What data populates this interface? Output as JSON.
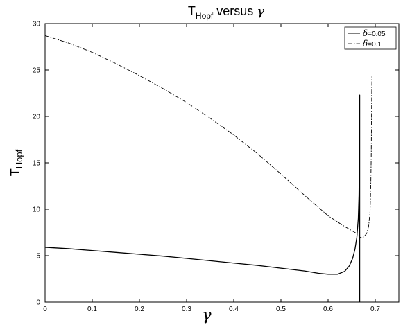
{
  "chart_data": {
    "type": "line",
    "title": {
      "main": "T",
      "subscript": "Hopf",
      "middle": " versus ",
      "symbol": "γ"
    },
    "xlabel": "γ",
    "ylabel": {
      "main": "T",
      "subscript": "Hopf"
    },
    "xlim": [
      0,
      0.75
    ],
    "ylim": [
      0,
      30
    ],
    "xticks": [
      "0",
      "0.1",
      "0.2",
      "0.3",
      "0.4",
      "0.5",
      "0.6",
      "0.7"
    ],
    "yticks": [
      "0",
      "5",
      "10",
      "15",
      "20",
      "25",
      "30"
    ],
    "grid": false,
    "legend_position": "top-right",
    "series": [
      {
        "name": "δ=0.05",
        "name_symbol": "δ",
        "name_rest": "=0.05",
        "style": "solid",
        "color": "#000000",
        "x": [
          0,
          0.05,
          0.1,
          0.15,
          0.2,
          0.25,
          0.3,
          0.35,
          0.4,
          0.45,
          0.5,
          0.55,
          0.58,
          0.6,
          0.62,
          0.635,
          0.645,
          0.652,
          0.657,
          0.661,
          0.664,
          0.6655,
          0.666,
          0.6665,
          0.6668,
          0.667,
          0.667
        ],
        "y": [
          5.9,
          5.75,
          5.55,
          5.35,
          5.15,
          4.95,
          4.7,
          4.45,
          4.2,
          3.95,
          3.65,
          3.35,
          3.1,
          3.0,
          3.0,
          3.3,
          3.9,
          4.7,
          5.7,
          7.0,
          9.0,
          11.5,
          14.0,
          17.5,
          20.0,
          22.3,
          0
        ]
      },
      {
        "name": "δ=0.1",
        "name_symbol": "δ",
        "name_rest": "=0.1",
        "style": "dashdot",
        "color": "#000000",
        "x": [
          0,
          0.05,
          0.1,
          0.15,
          0.2,
          0.25,
          0.3,
          0.35,
          0.4,
          0.45,
          0.5,
          0.55,
          0.6,
          0.63,
          0.65,
          0.66,
          0.667,
          0.672,
          0.677,
          0.682,
          0.686,
          0.689,
          0.6905,
          0.6915,
          0.692,
          0.6925,
          0.693
        ],
        "y": [
          28.7,
          27.9,
          26.9,
          25.7,
          24.4,
          23.0,
          21.5,
          19.8,
          18.0,
          16.0,
          13.8,
          11.5,
          9.3,
          8.3,
          7.7,
          7.4,
          7.0,
          6.9,
          7.1,
          7.4,
          8.2,
          9.8,
          12.5,
          16.0,
          19.5,
          22.5,
          24.4
        ]
      }
    ]
  }
}
